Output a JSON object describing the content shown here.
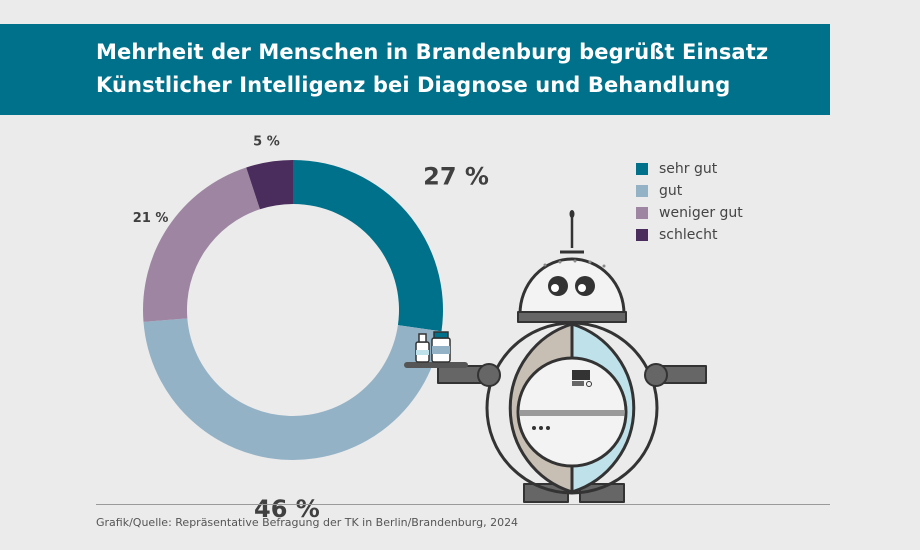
{
  "title": {
    "line1": "Mehrheit der Menschen in Brandenburg begrüßt Einsatz",
    "line2": "Künstlicher Intelligenz bei Diagnose und Behandlung"
  },
  "legend": [
    {
      "label": "sehr gut",
      "color": "#00718a"
    },
    {
      "label": "gut",
      "color": "#94b2c6"
    },
    {
      "label": "weniger gut",
      "color": "#9e86a3"
    },
    {
      "label": "schlecht",
      "color": "#4a2d5c"
    }
  ],
  "chart_data": {
    "type": "pie",
    "variant": "donut",
    "categories": [
      "sehr gut",
      "gut",
      "weniger gut",
      "schlecht"
    ],
    "values": [
      27,
      46,
      21,
      5
    ],
    "value_labels": [
      "27 %",
      "46 %",
      "21 %",
      "5 %"
    ],
    "colors": [
      "#00718a",
      "#94b2c6",
      "#9e86a3",
      "#4a2d5c"
    ],
    "unit": "%",
    "legend_position": "top-right"
  },
  "source": "Grafik/Quelle: Repräsentative Befragung der TK in Berlin/Brandenburg, 2024",
  "illustration": {
    "name": "robot-nurse-illustration",
    "colors": {
      "body_left": "#c8bfb4",
      "body_right": "#bfe1ea",
      "outline": "#333333",
      "arm": "#666666",
      "head": "#f3f3f3"
    }
  }
}
